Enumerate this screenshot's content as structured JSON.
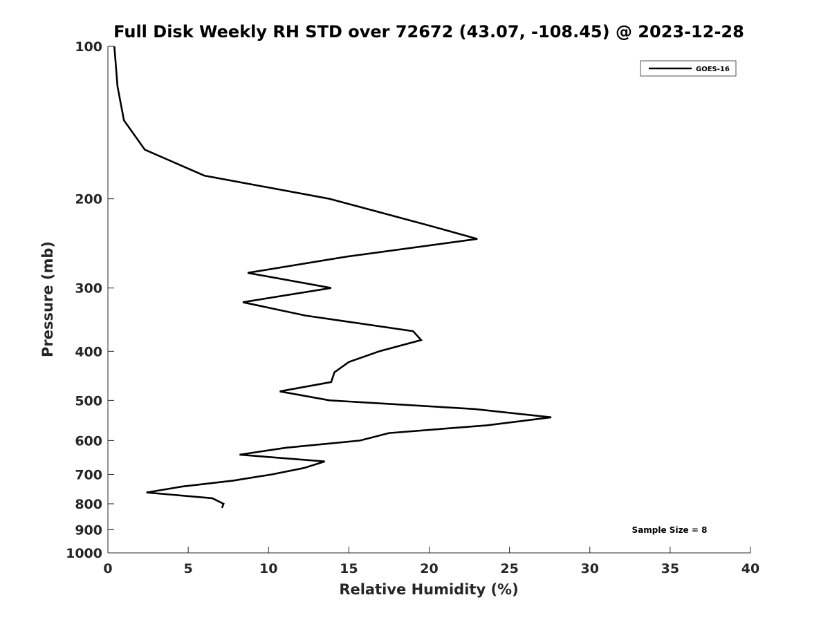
{
  "chart_data": {
    "type": "line",
    "title": "Full Disk Weekly RH STD over 72672 (43.07, -108.45) @ 2023-12-28",
    "xlabel": "Relative Humidity (%)",
    "ylabel": "Pressure (mb)",
    "xlim": [
      0,
      40
    ],
    "ylim": [
      1000,
      100
    ],
    "yscale": "log",
    "grid": false,
    "legend_position": "top-right",
    "x_ticks": [
      0,
      5,
      10,
      15,
      20,
      25,
      30,
      35,
      40
    ],
    "x_tick_labels": [
      "0",
      "5",
      "10",
      "15",
      "20",
      "25",
      "30",
      "35",
      "40"
    ],
    "y_ticks": [
      100,
      200,
      300,
      400,
      500,
      600,
      700,
      800,
      900,
      1000
    ],
    "y_tick_labels": [
      "100",
      "200",
      "300",
      "400",
      "500",
      "600",
      "700",
      "800",
      "900",
      "1000"
    ],
    "series": [
      {
        "name": "GOES-16",
        "color": "#000000",
        "points": [
          {
            "x": 0.4,
            "p": 100
          },
          {
            "x": 0.6,
            "p": 120
          },
          {
            "x": 1.0,
            "p": 140
          },
          {
            "x": 2.3,
            "p": 160
          },
          {
            "x": 6.0,
            "p": 180
          },
          {
            "x": 13.8,
            "p": 200
          },
          {
            "x": 19.8,
            "p": 225
          },
          {
            "x": 23.0,
            "p": 240
          },
          {
            "x": 14.9,
            "p": 260
          },
          {
            "x": 8.7,
            "p": 280
          },
          {
            "x": 13.9,
            "p": 300
          },
          {
            "x": 8.4,
            "p": 320
          },
          {
            "x": 12.3,
            "p": 340
          },
          {
            "x": 19.0,
            "p": 365
          },
          {
            "x": 19.5,
            "p": 380
          },
          {
            "x": 16.9,
            "p": 400
          },
          {
            "x": 15.0,
            "p": 420
          },
          {
            "x": 14.1,
            "p": 440
          },
          {
            "x": 13.9,
            "p": 460
          },
          {
            "x": 10.7,
            "p": 480
          },
          {
            "x": 13.8,
            "p": 500
          },
          {
            "x": 22.8,
            "p": 520
          },
          {
            "x": 27.6,
            "p": 540
          },
          {
            "x": 23.6,
            "p": 560
          },
          {
            "x": 17.5,
            "p": 580
          },
          {
            "x": 15.7,
            "p": 600
          },
          {
            "x": 11.1,
            "p": 620
          },
          {
            "x": 8.2,
            "p": 640
          },
          {
            "x": 13.5,
            "p": 660
          },
          {
            "x": 12.2,
            "p": 680
          },
          {
            "x": 10.2,
            "p": 700
          },
          {
            "x": 7.8,
            "p": 720
          },
          {
            "x": 4.6,
            "p": 740
          },
          {
            "x": 2.4,
            "p": 760
          },
          {
            "x": 6.5,
            "p": 780
          },
          {
            "x": 7.2,
            "p": 800
          },
          {
            "x": 7.1,
            "p": 815
          }
        ]
      }
    ],
    "annotations": [
      {
        "text": "Sample Size = 8",
        "position": "bottom-right"
      }
    ]
  }
}
